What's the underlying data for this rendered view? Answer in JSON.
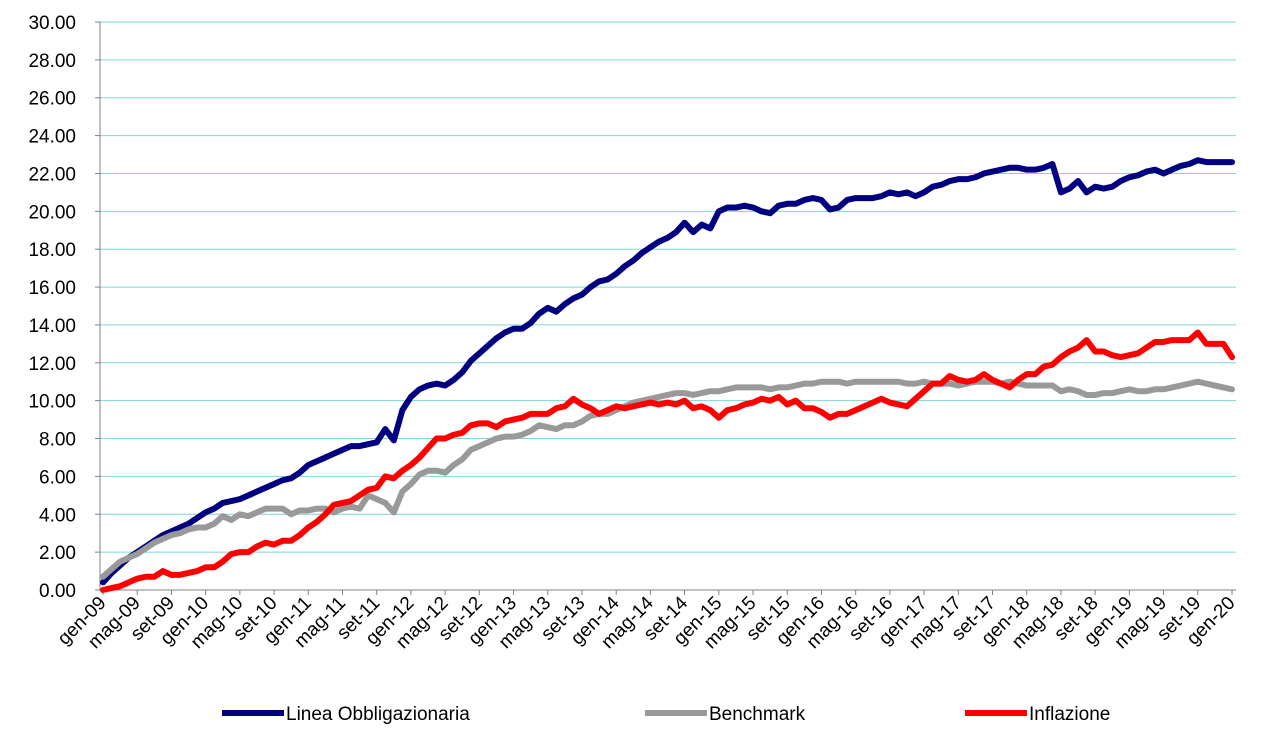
{
  "chart_data": {
    "type": "line",
    "categories": [
      "gen-09",
      null,
      null,
      null,
      "mag-09",
      null,
      null,
      null,
      "set-09",
      null,
      null,
      null,
      "gen-10",
      null,
      null,
      null,
      "mag-10",
      null,
      null,
      null,
      "set-10",
      null,
      null,
      null,
      "gen-11",
      null,
      null,
      null,
      "mag-11",
      null,
      null,
      null,
      "set-11",
      null,
      null,
      null,
      "gen-12",
      null,
      null,
      null,
      "mag-12",
      null,
      null,
      null,
      "set-12",
      null,
      null,
      null,
      "gen-13",
      null,
      null,
      null,
      "mag-13",
      null,
      null,
      null,
      "set-13",
      null,
      null,
      null,
      "gen-14",
      null,
      null,
      null,
      "mag-14",
      null,
      null,
      null,
      "set-14",
      null,
      null,
      null,
      "gen-15",
      null,
      null,
      null,
      "mag-15",
      null,
      null,
      null,
      "set-15",
      null,
      null,
      null,
      "gen-16",
      null,
      null,
      null,
      "mag-16",
      null,
      null,
      null,
      "set-16",
      null,
      null,
      null,
      "gen-17",
      null,
      null,
      null,
      "mag-17",
      null,
      null,
      null,
      "set-17",
      null,
      null,
      null,
      "gen-18",
      null,
      null,
      null,
      "mag-18",
      null,
      null,
      null,
      "set-18",
      null,
      null,
      null,
      "gen-19",
      null,
      null,
      null,
      "mag-19",
      null,
      null,
      null,
      "set-19",
      null,
      null,
      null,
      "gen-20"
    ],
    "series": [
      {
        "name": "Linea Obbligazionaria",
        "color": "#000080",
        "values": [
          0.4,
          0.9,
          1.3,
          1.7,
          2.0,
          2.3,
          2.6,
          2.9,
          3.1,
          3.3,
          3.5,
          3.8,
          4.1,
          4.3,
          4.6,
          4.7,
          4.8,
          5.0,
          5.2,
          5.4,
          5.6,
          5.8,
          5.9,
          6.2,
          6.6,
          6.8,
          7.0,
          7.2,
          7.4,
          7.6,
          7.6,
          7.7,
          7.8,
          8.5,
          7.9,
          9.5,
          10.2,
          10.6,
          10.8,
          10.9,
          10.8,
          11.1,
          11.5,
          12.1,
          12.5,
          12.9,
          13.3,
          13.6,
          13.8,
          13.8,
          14.1,
          14.6,
          14.9,
          14.7,
          15.1,
          15.4,
          15.6,
          16.0,
          16.3,
          16.4,
          16.7,
          17.1,
          17.4,
          17.8,
          18.1,
          18.4,
          18.6,
          18.9,
          19.4,
          18.9,
          19.3,
          19.1,
          20.0,
          20.2,
          20.2,
          20.3,
          20.2,
          20.0,
          19.9,
          20.3,
          20.4,
          20.4,
          20.6,
          20.7,
          20.6,
          20.1,
          20.2,
          20.6,
          20.7,
          20.7,
          20.7,
          20.8,
          21.0,
          20.9,
          21.0,
          20.8,
          21.0,
          21.3,
          21.4,
          21.6,
          21.7,
          21.7,
          21.8,
          22.0,
          22.1,
          22.2,
          22.3,
          22.3,
          22.2,
          22.2,
          22.3,
          22.5,
          21.0,
          21.2,
          21.6,
          21.0,
          21.3,
          21.2,
          21.3,
          21.6,
          21.8,
          21.9,
          22.1,
          22.2,
          22.0,
          22.2,
          22.4,
          22.5,
          22.7,
          22.6,
          22.6,
          22.6,
          22.6
        ]
      },
      {
        "name": "Benchmark",
        "color": "#999999",
        "values": [
          0.7,
          1.1,
          1.5,
          1.7,
          1.9,
          2.2,
          2.5,
          2.7,
          2.9,
          3.0,
          3.2,
          3.3,
          3.3,
          3.5,
          3.9,
          3.7,
          4.0,
          3.9,
          4.1,
          4.3,
          4.3,
          4.3,
          4.0,
          4.2,
          4.2,
          4.3,
          4.3,
          4.1,
          4.3,
          4.4,
          4.3,
          5.0,
          4.8,
          4.6,
          4.1,
          5.2,
          5.6,
          6.1,
          6.3,
          6.3,
          6.2,
          6.6,
          6.9,
          7.4,
          7.6,
          7.8,
          8.0,
          8.1,
          8.1,
          8.2,
          8.4,
          8.7,
          8.6,
          8.5,
          8.7,
          8.7,
          8.9,
          9.2,
          9.3,
          9.3,
          9.5,
          9.7,
          9.9,
          10.0,
          10.1,
          10.2,
          10.3,
          10.4,
          10.4,
          10.3,
          10.4,
          10.5,
          10.5,
          10.6,
          10.7,
          10.7,
          10.7,
          10.7,
          10.6,
          10.7,
          10.7,
          10.8,
          10.9,
          10.9,
          11.0,
          11.0,
          11.0,
          10.9,
          11.0,
          11.0,
          11.0,
          11.0,
          11.0,
          11.0,
          10.9,
          10.9,
          11.0,
          10.9,
          10.9,
          10.9,
          10.8,
          10.9,
          11.0,
          11.0,
          11.0,
          10.9,
          11.0,
          10.9,
          10.8,
          10.8,
          10.8,
          10.8,
          10.5,
          10.6,
          10.5,
          10.3,
          10.3,
          10.4,
          10.4,
          10.5,
          10.6,
          10.5,
          10.5,
          10.6,
          10.6,
          10.7,
          10.8,
          10.9,
          11.0,
          10.9,
          10.8,
          10.7,
          10.6
        ]
      },
      {
        "name": "Inflazione",
        "color": "#ff0000",
        "values": [
          0.0,
          0.1,
          0.2,
          0.4,
          0.6,
          0.7,
          0.7,
          1.0,
          0.8,
          0.8,
          0.9,
          1.0,
          1.2,
          1.2,
          1.5,
          1.9,
          2.0,
          2.0,
          2.3,
          2.5,
          2.4,
          2.6,
          2.6,
          2.9,
          3.3,
          3.6,
          4.0,
          4.5,
          4.6,
          4.7,
          5.0,
          5.3,
          5.4,
          6.0,
          5.9,
          6.3,
          6.6,
          7.0,
          7.5,
          8.0,
          8.0,
          8.2,
          8.3,
          8.7,
          8.8,
          8.8,
          8.6,
          8.9,
          9.0,
          9.1,
          9.3,
          9.3,
          9.3,
          9.6,
          9.7,
          10.1,
          9.8,
          9.6,
          9.3,
          9.5,
          9.7,
          9.6,
          9.7,
          9.8,
          9.9,
          9.8,
          9.9,
          9.8,
          10.0,
          9.6,
          9.7,
          9.5,
          9.1,
          9.5,
          9.6,
          9.8,
          9.9,
          10.1,
          10.0,
          10.2,
          9.8,
          10.0,
          9.6,
          9.6,
          9.4,
          9.1,
          9.3,
          9.3,
          9.5,
          9.7,
          9.9,
          10.1,
          9.9,
          9.8,
          9.7,
          10.1,
          10.5,
          10.9,
          10.9,
          11.3,
          11.1,
          11.0,
          11.1,
          11.4,
          11.1,
          10.9,
          10.7,
          11.1,
          11.4,
          11.4,
          11.8,
          11.9,
          12.3,
          12.6,
          12.8,
          13.2,
          12.6,
          12.6,
          12.4,
          12.3,
          12.4,
          12.5,
          12.8,
          13.1,
          13.1,
          13.2,
          13.2,
          13.2,
          13.6,
          13.0,
          13.0,
          13.0,
          12.3
        ]
      }
    ],
    "ylim": [
      0,
      30
    ],
    "yticks": [
      {
        "value": 0,
        "label": "0.00"
      },
      {
        "value": 2,
        "label": "2.00"
      },
      {
        "value": 4,
        "label": "4.00"
      },
      {
        "value": 6,
        "label": "6.00"
      },
      {
        "value": 8,
        "label": "8.00"
      },
      {
        "value": 10,
        "label": "10.00"
      },
      {
        "value": 12,
        "label": "12.00"
      },
      {
        "value": 14,
        "label": "14.00"
      },
      {
        "value": 16,
        "label": "16.00"
      },
      {
        "value": 18,
        "label": "18.00"
      },
      {
        "value": 20,
        "label": "20.00"
      },
      {
        "value": 22,
        "label": "22.00"
      },
      {
        "value": 24,
        "label": "24.00"
      },
      {
        "value": 26,
        "label": "26.00"
      },
      {
        "value": 28,
        "label": "28.00"
      },
      {
        "value": 30,
        "label": "30.00"
      }
    ],
    "grid": true,
    "legend": "bottom"
  }
}
